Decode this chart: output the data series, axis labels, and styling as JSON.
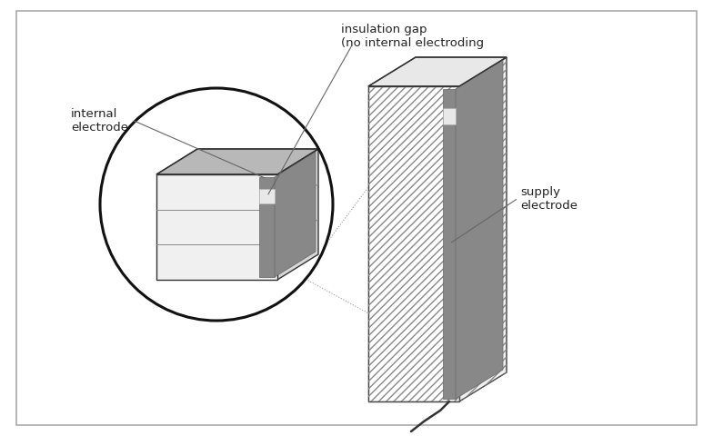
{
  "bg_color": "#ffffff",
  "border_color": "#999999",
  "line_color": "#333333",
  "dark_line": "#222222",
  "electrode_color": "#888888",
  "top_face_color": "#c8c8c8",
  "side_face_light": "#e8e8e8",
  "front_face_color": "#f5f5f5",
  "hatch_color": "#aaaaaa",
  "label_internal_electrode": "internal\nelectrode",
  "label_insulation_gap": "insulation gap\n(no internal electroding",
  "label_supply_electrode": "supply\nelectrode",
  "font_size": 9.5
}
